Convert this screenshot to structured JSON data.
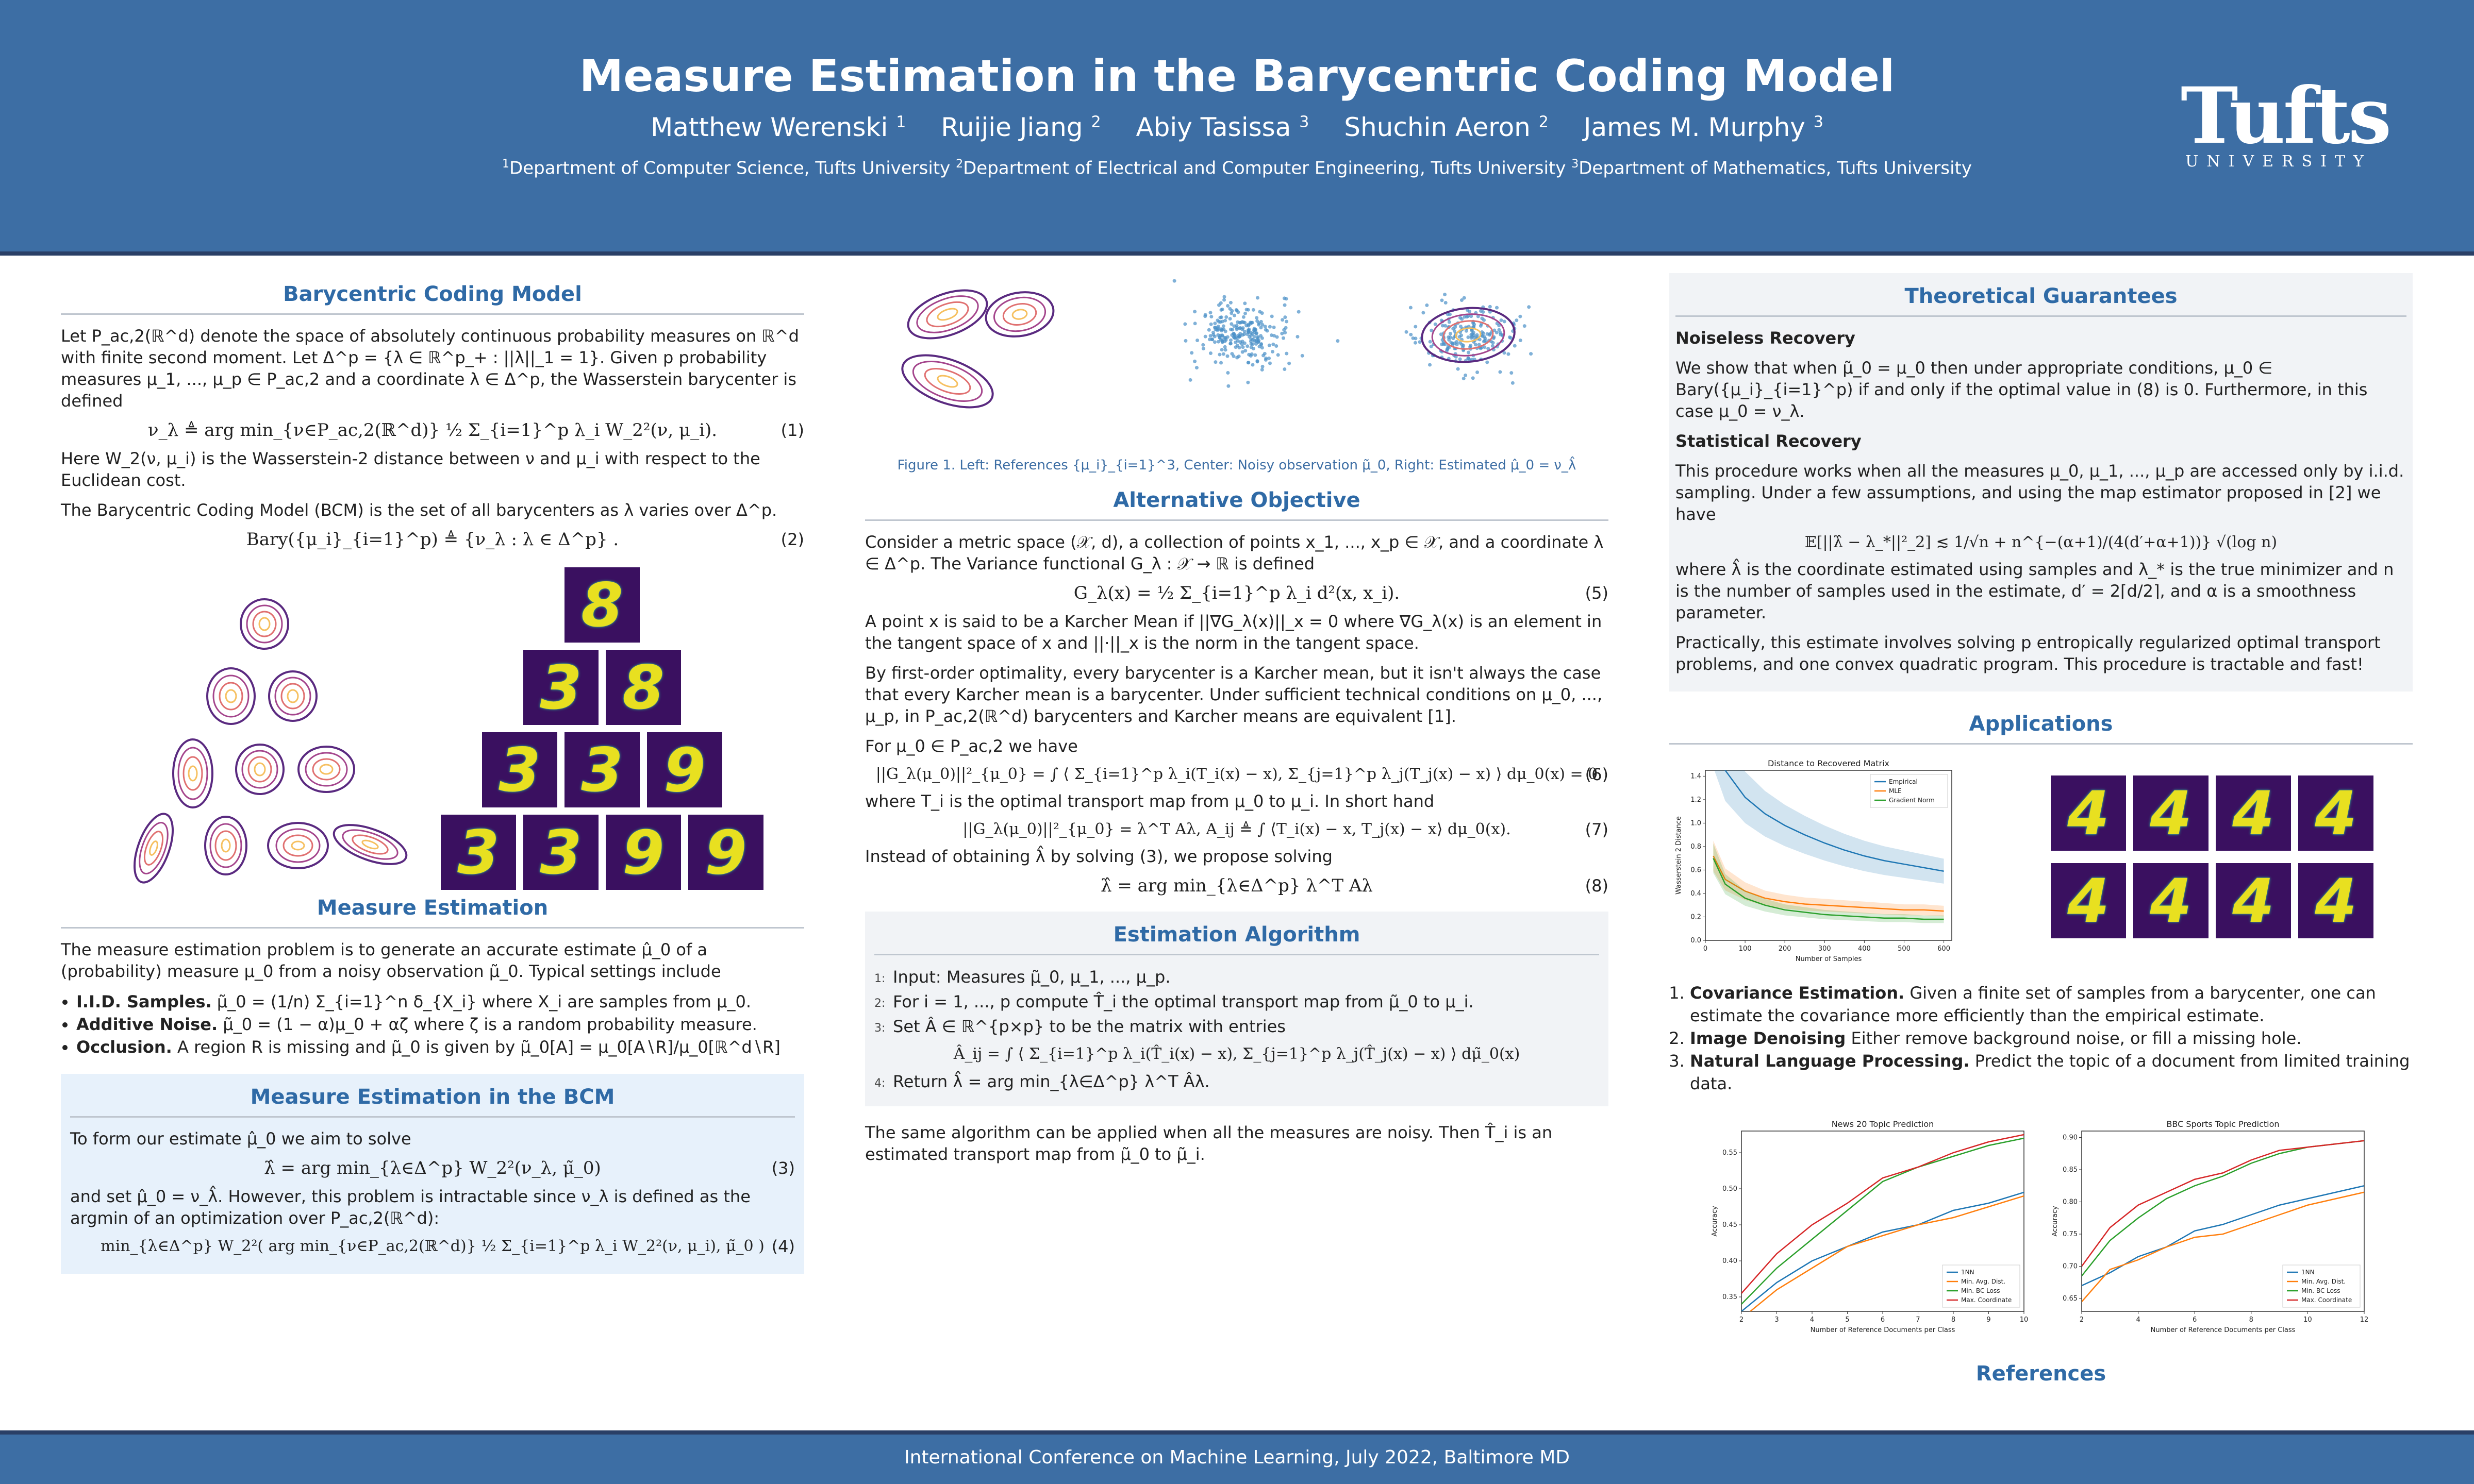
{
  "header": {
    "title": "Measure Estimation in the Barycentric Coding Model",
    "authors": [
      {
        "name": "Matthew Werenski",
        "sup": "1"
      },
      {
        "name": "Ruijie Jiang",
        "sup": "2"
      },
      {
        "name": "Abiy Tasissa",
        "sup": "3"
      },
      {
        "name": "Shuchin Aeron",
        "sup": "2"
      },
      {
        "name": "James M. Murphy",
        "sup": "3"
      }
    ],
    "affiliations": [
      {
        "sup": "1",
        "text": "Department of Computer Science, Tufts University"
      },
      {
        "sup": "2",
        "text": "Department of Electrical and Computer Engineering, Tufts University"
      },
      {
        "sup": "3",
        "text": "Department of Mathematics, Tufts University"
      }
    ],
    "logo_word": "Tufts",
    "logo_sub": "UNIVERSITY"
  },
  "colors": {
    "header_bg": "#3d6ea4",
    "heading": "#2f6aa6",
    "box_bg": "#e7f1fb"
  },
  "bcm": {
    "heading": "Barycentric Coding Model",
    "p1": "Let P_ac,2(ℝ^d) denote the space of absolutely continuous probability measures on ℝ^d with finite second moment. Let Δ^p = {λ ∈ ℝ^p_+ : ||λ||_1 = 1}. Given p probability measures μ_1, ..., μ_p ∈ P_ac,2 and a coordinate λ ∈ Δ^p, the Wasserstein barycenter is defined",
    "eq1": "ν_λ ≜ arg min_{ν∈P_ac,2(ℝ^d)} ½ Σ_{i=1}^p λ_i W_2²(ν, μ_i).",
    "eq1_num": "(1)",
    "p2": "Here W_2(ν, μ_i) is the Wasserstein-2 distance between ν and μ_i with respect to the Euclidean cost.",
    "p3": "The Barycentric Coding Model (BCM) is the set of all barycenters as λ varies over Δ^p.",
    "eq2": "Bary({μ_i}_{i=1}^p) ≜ {ν_λ : λ ∈ Δ^p} .",
    "eq2_num": "(2)"
  },
  "digits_grid": [
    "8",
    "3",
    "8",
    "3",
    "3",
    "9",
    "3",
    "3",
    "9",
    "9"
  ],
  "measure_est": {
    "heading": "Measure Estimation",
    "p1": "The measure estimation problem is to generate an accurate estimate μ̂_0 of a (probability) measure μ_0 from a noisy observation μ̃_0. Typical settings include",
    "items": [
      {
        "label": "I.I.D. Samples.",
        "text": "μ̃_0 = (1/n) Σ_{i=1}^n δ_{X_i} where X_i are samples from μ_0."
      },
      {
        "label": "Additive Noise.",
        "text": "μ̃_0 = (1 − α)μ_0 + αζ where ζ is a random probability measure."
      },
      {
        "label": "Occlusion.",
        "text": "A region R is missing and μ̃_0 is given by μ̃_0[A] = μ_0[A∖R]/μ_0[ℝ^d∖R]"
      }
    ]
  },
  "bcm_box": {
    "heading": "Measure Estimation in the BCM",
    "p1": "To form our estimate μ̂_0 we aim to solve",
    "eq3": "λ̂ = arg min_{λ∈Δ^p} W_2²(ν_λ, μ̃_0)",
    "eq3_num": "(3)",
    "p2": "and set μ̂_0 = ν_λ̂. However, this problem is intractable since ν_λ is defined as the argmin of an optimization over P_ac,2(ℝ^d):",
    "eq4": "min_{λ∈Δ^p} W_2²( arg min_{ν∈P_ac,2(ℝ^d)} ½ Σ_{i=1}^p λ_i W_2²(ν, μ_i), μ̃_0 )",
    "eq4_num": "(4)"
  },
  "figure1": {
    "caption": "Figure 1. Left: References {μ_i}_{i=1}^3, Center: Noisy observation μ̃_0, Right: Estimated μ̂_0 = ν_λ̂"
  },
  "alt": {
    "heading": "Alternative Objective",
    "p1": "Consider a metric space (𝒳, d), a collection of points x_1, ..., x_p ∈ 𝒳, and a coordinate λ ∈ Δ^p. The Variance functional G_λ : 𝒳 → ℝ is defined",
    "eq5": "G_λ(x) = ½ Σ_{i=1}^p λ_i d²(x, x_i).",
    "eq5_num": "(5)",
    "p2": "A point x is said to be a Karcher Mean if ||∇G_λ(x)||_x = 0 where ∇G_λ(x) is an element in the tangent space of x and ||·||_x is the norm in the tangent space.",
    "p3": "By first-order optimality, every barycenter is a Karcher mean, but it isn't always the case that every Karcher mean is a barycenter. Under sufficient technical conditions on μ_0, ..., μ_p, in P_ac,2(ℝ^d) barycenters and Karcher means are equivalent [1].",
    "p4": "For μ_0 ∈ P_ac,2 we have",
    "eq6": "||G_λ(μ_0)||²_{μ_0} = ∫ ⟨ Σ_{i=1}^p λ_i(T_i(x) − x), Σ_{j=1}^p λ_j(T_j(x) − x) ⟩ dμ_0(x) = 0",
    "eq6_num": "(6)",
    "p5": "where T_i is the optimal transport map from μ_0 to μ_i. In short hand",
    "eq7": "||G_λ(μ_0)||²_{μ_0} = λ^T Aλ,     A_ij ≜ ∫ ⟨T_i(x) − x, T_j(x) − x⟩ dμ_0(x).",
    "eq7_num": "(7)",
    "p6": "Instead of obtaining λ̂ by solving (3), we propose solving",
    "eq8": "λ̂ = arg min_{λ∈Δ^p} λ^T Aλ",
    "eq8_num": "(8)"
  },
  "algo": {
    "heading": "Estimation Algorithm",
    "lines": [
      {
        "n": "1:",
        "text": "Input: Measures μ̃_0, μ_1, ..., μ_p."
      },
      {
        "n": "2:",
        "text": "For i = 1, ..., p compute T̂_i the optimal transport map from μ̃_0 to μ_i."
      },
      {
        "n": "3:",
        "text": "Set Â ∈ ℝ^{p×p} to be the matrix with entries"
      },
      {
        "n": "4:",
        "text": "Return λ̂ = arg min_{λ∈Δ^p} λ^T Âλ."
      }
    ],
    "eq": "Â_ij = ∫ ⟨ Σ_{i=1}^p λ_i(T̂_i(x) − x), Σ_{j=1}^p λ_j(T̂_j(x) − x) ⟩ dμ̃_0(x)",
    "after": "The same algorithm can be applied when all the measures are noisy. Then T̂_i is an estimated transport map from μ̃_0 to μ̃_i."
  },
  "theory": {
    "heading": "Theoretical Guarantees",
    "sub1": "Noiseless Recovery",
    "p1": "We show that when μ̃_0 = μ_0 then under appropriate conditions, μ_0 ∈ Bary({μ_i}_{i=1}^p) if and only if the optimal value in (8) is 0. Furthermore, in this case μ_0 = ν_λ.",
    "sub2": "Statistical Recovery",
    "p2": "This procedure works when all the measures μ_0, μ_1, ..., μ_p are accessed only by i.i.d. sampling. Under a few assumptions, and using the map estimator proposed in [2] we have",
    "eq": "𝔼[||λ̂ − λ_*||²_2] ≲ 1/√n + n^{−(α+1)/(4(d′+α+1))} √(log n)",
    "p3": "where λ̂ is the coordinate estimated using samples and λ_* is the true minimizer and n is the number of samples used in the estimate, d′ = 2⌈d/2⌉, and α is a smoothness parameter.",
    "p4": "Practically, this estimate involves solving p entropically regularized optimal transport problems, and one convex quadratic program. This procedure is tractable and fast!"
  },
  "apps": {
    "heading": "Applications",
    "items": [
      {
        "label": "Covariance Estimation.",
        "text": "Given a finite set of samples from a barycenter, one can estimate the covariance more efficiently than the empirical estimate."
      },
      {
        "label": "Image Denoising",
        "text": "Either remove background noise, or fill a missing hole."
      },
      {
        "label": "Natural Language Processing.",
        "text": "Predict the topic of a document from limited training data."
      }
    ]
  },
  "app_digits": [
    "4",
    "4",
    "4",
    "4",
    "4",
    "4",
    "4",
    "4"
  ],
  "references_heading": "References",
  "footer": "International Conference on Machine Learning, July 2022, Baltimore MD",
  "chart_data": [
    {
      "type": "line",
      "title": "Distance to Recovered Matrix",
      "xlabel": "Number of Samples",
      "ylabel": "Wasserstein 2 Distance",
      "xlim": [
        0,
        620
      ],
      "ylim": [
        0,
        1.45
      ],
      "xticks": [
        0,
        100,
        200,
        300,
        400,
        500,
        600
      ],
      "yticks": [
        0.0,
        0.2,
        0.4,
        0.6,
        0.8,
        1.0,
        1.2,
        1.4
      ],
      "legend": "top-right",
      "x": [
        20,
        50,
        100,
        150,
        200,
        250,
        300,
        350,
        400,
        450,
        500,
        550,
        600
      ],
      "series": [
        {
          "name": "Empirical",
          "color": "#1f77b4",
          "values": [
            1.8,
            1.45,
            1.22,
            1.08,
            0.98,
            0.9,
            0.83,
            0.77,
            0.72,
            0.68,
            0.65,
            0.62,
            0.59
          ]
        },
        {
          "name": "MLE",
          "color": "#ff7f0e",
          "values": [
            0.72,
            0.52,
            0.42,
            0.36,
            0.33,
            0.31,
            0.3,
            0.29,
            0.28,
            0.27,
            0.26,
            0.26,
            0.25
          ]
        },
        {
          "name": "Gradient Norm",
          "color": "#2ca02c",
          "values": [
            0.7,
            0.48,
            0.36,
            0.3,
            0.26,
            0.24,
            0.22,
            0.21,
            0.2,
            0.19,
            0.19,
            0.18,
            0.18
          ]
        }
      ]
    },
    {
      "type": "line",
      "title": "News 20 Topic Prediction",
      "xlabel": "Number of Reference Documents per Class",
      "ylabel": "Accuracy",
      "xlim": [
        2,
        10
      ],
      "ylim": [
        0.33,
        0.58
      ],
      "xticks": [
        2,
        3,
        4,
        5,
        6,
        7,
        8,
        9,
        10
      ],
      "yticks": [
        0.35,
        0.4,
        0.45,
        0.5,
        0.55
      ],
      "legend": "bottom-right",
      "x": [
        2,
        3,
        4,
        5,
        6,
        7,
        8,
        9,
        10
      ],
      "series": [
        {
          "name": "1NN",
          "color": "#1f77b4",
          "values": [
            0.33,
            0.37,
            0.4,
            0.42,
            0.44,
            0.45,
            0.47,
            0.48,
            0.495
          ]
        },
        {
          "name": "Min. Avg. Dist.",
          "color": "#ff7f0e",
          "values": [
            0.32,
            0.36,
            0.39,
            0.42,
            0.435,
            0.45,
            0.46,
            0.475,
            0.49
          ]
        },
        {
          "name": "Min. BC Loss",
          "color": "#2ca02c",
          "values": [
            0.34,
            0.39,
            0.43,
            0.47,
            0.51,
            0.53,
            0.545,
            0.56,
            0.57
          ]
        },
        {
          "name": "Max. Coordinate",
          "color": "#d62728",
          "values": [
            0.355,
            0.41,
            0.45,
            0.48,
            0.515,
            0.53,
            0.55,
            0.565,
            0.575
          ]
        }
      ]
    },
    {
      "type": "line",
      "title": "BBC Sports Topic Prediction",
      "xlabel": "Number of Reference Documents per Class",
      "ylabel": "Accuracy",
      "xlim": [
        2,
        12
      ],
      "ylim": [
        0.63,
        0.91
      ],
      "xticks": [
        2,
        4,
        6,
        8,
        10,
        12
      ],
      "yticks": [
        0.65,
        0.7,
        0.75,
        0.8,
        0.85,
        0.9
      ],
      "legend": "bottom-right",
      "x": [
        2,
        3,
        4,
        5,
        6,
        7,
        8,
        9,
        10,
        11,
        12
      ],
      "series": [
        {
          "name": "1NN",
          "color": "#1f77b4",
          "values": [
            0.67,
            0.69,
            0.715,
            0.73,
            0.755,
            0.765,
            0.78,
            0.795,
            0.805,
            0.815,
            0.825
          ]
        },
        {
          "name": "Min. Avg. Dist.",
          "color": "#ff7f0e",
          "values": [
            0.645,
            0.695,
            0.71,
            0.73,
            0.745,
            0.75,
            0.765,
            0.78,
            0.795,
            0.805,
            0.815
          ]
        },
        {
          "name": "Min. BC Loss",
          "color": "#2ca02c",
          "values": [
            0.685,
            0.74,
            0.775,
            0.805,
            0.825,
            0.84,
            0.86,
            0.875,
            0.885,
            0.89,
            0.895
          ]
        },
        {
          "name": "Max. Coordinate",
          "color": "#d62728",
          "values": [
            0.7,
            0.76,
            0.795,
            0.815,
            0.835,
            0.845,
            0.865,
            0.88,
            0.885,
            0.89,
            0.895
          ]
        }
      ]
    }
  ]
}
